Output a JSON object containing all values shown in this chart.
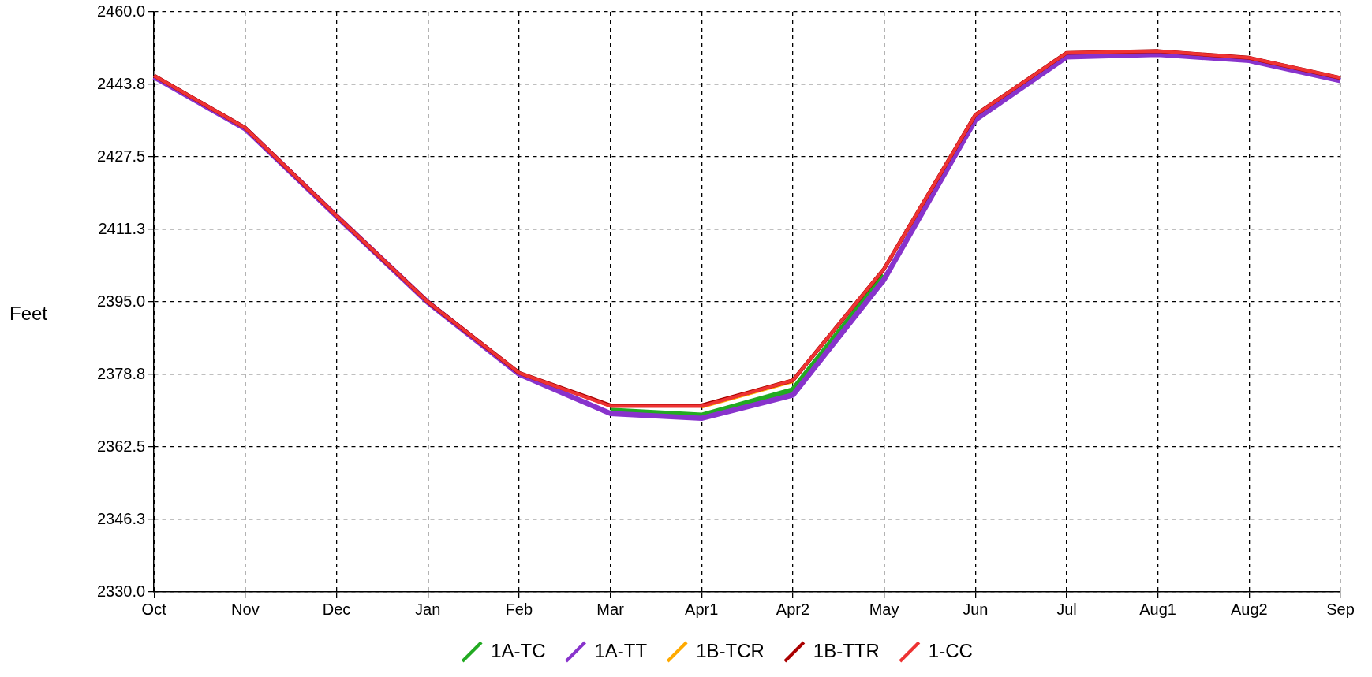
{
  "chart_data": {
    "type": "line",
    "ylabel": "Feet",
    "categories": [
      "Oct",
      "Nov",
      "Dec",
      "Jan",
      "Feb",
      "Mar",
      "Apr1",
      "Apr2",
      "May",
      "Jun",
      "Jul",
      "Aug1",
      "Aug2",
      "Sep"
    ],
    "series": [
      {
        "name": "1A-TC",
        "color": "#22aa22",
        "values": [
          null,
          null,
          null,
          null,
          null,
          2370.6,
          2369.5,
          2375.2,
          2400.9,
          null,
          null,
          null,
          null,
          null
        ]
      },
      {
        "name": "1A-TT",
        "color": "#8833cc",
        "values": [
          2445.4,
          2433.8,
          2414.2,
          2394.9,
          2378.8,
          2370.0,
          2368.9,
          2374.1,
          2400.0,
          2435.8,
          2449.9,
          2450.5,
          2449.1,
          2444.6
        ]
      },
      {
        "name": "1B-TCR",
        "color": "#ffaa00",
        "values": [
          null,
          null,
          null,
          null,
          null,
          null,
          2371.6,
          2377.3,
          null,
          null,
          null,
          null,
          null,
          null
        ]
      },
      {
        "name": "1B-TTR",
        "color": "#aa0000",
        "values": [
          2445.7,
          2434.0,
          2414.3,
          2395.0,
          2379.1,
          2371.8,
          2371.8,
          2377.4,
          2402.4,
          2436.9,
          2450.8,
          2451.2,
          2449.7,
          2445.2
        ]
      },
      {
        "name": "1-CC",
        "color": "#ee3333",
        "values": [
          2445.7,
          2434.0,
          2414.3,
          2395.0,
          2379.1,
          2371.6,
          2371.6,
          2377.4,
          2402.4,
          2436.9,
          2450.8,
          2451.2,
          2449.7,
          2445.2
        ]
      }
    ],
    "ylim": [
      2330,
      2460
    ],
    "yticks": [
      {
        "value": 2330,
        "label": "2330.0"
      },
      {
        "value": 2346.25,
        "label": "2346.3"
      },
      {
        "value": 2362.5,
        "label": "2362.5"
      },
      {
        "value": 2378.75,
        "label": "2378.8"
      },
      {
        "value": 2395,
        "label": "2395.0"
      },
      {
        "value": 2411.25,
        "label": "2411.3"
      },
      {
        "value": 2427.5,
        "label": "2427.5"
      },
      {
        "value": 2443.75,
        "label": "2443.8"
      },
      {
        "value": 2460,
        "label": "2460.0"
      }
    ],
    "grid": true,
    "legend": "bottom",
    "marker": "none",
    "line_style": "solid"
  }
}
